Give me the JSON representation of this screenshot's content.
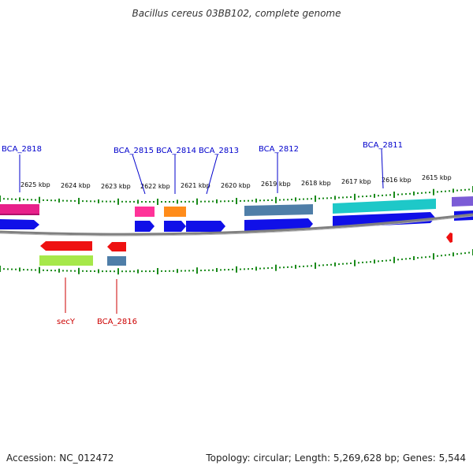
{
  "title": "Bacillus cereus 03BB102, complete genome",
  "footer": {
    "accession": "Accession: NC_012472",
    "summary": "Topology: circular; Length: 5,269,628 bp; Genes: 5,544"
  },
  "colors": {
    "forward_label": "#0000cc",
    "reverse_label": "#cc0000",
    "tick": "#1a8a1a",
    "backbone": "#808080"
  },
  "scale_labels": [
    "2625 kbp",
    "2624 kbp",
    "2623 kbp",
    "2622 kbp",
    "2621 kbp",
    "2620 kbp",
    "2619 kbp",
    "2618 kbp",
    "2617 kbp",
    "2616 kbp",
    "2615 kbp"
  ],
  "gene_labels": {
    "forward": [
      "BCA_2818",
      "BCA_2815",
      "BCA_2814",
      "BCA_2813",
      "BCA_2812",
      "BCA_2811"
    ],
    "reverse": [
      "secY",
      "BCA_2816"
    ]
  }
}
